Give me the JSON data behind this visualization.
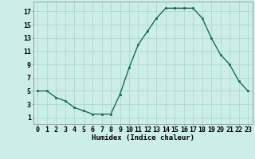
{
  "x": [
    0,
    1,
    2,
    3,
    4,
    5,
    6,
    7,
    8,
    9,
    10,
    11,
    12,
    13,
    14,
    15,
    16,
    17,
    18,
    19,
    20,
    21,
    22,
    23
  ],
  "y": [
    5,
    5,
    4,
    3.5,
    2.5,
    2,
    1.5,
    1.5,
    1.5,
    4.5,
    8.5,
    12,
    14,
    16,
    17.5,
    17.5,
    17.5,
    17.5,
    16,
    13,
    10.5,
    9,
    6.5,
    5
  ],
  "line_color": "#1a6b5a",
  "marker_color": "#1a6b5a",
  "bg_color": "#cceee8",
  "grid_color": "#b0d8d0",
  "xlabel": "Humidex (Indice chaleur)",
  "xlim": [
    -0.5,
    23.5
  ],
  "ylim": [
    0,
    18.5
  ],
  "yticks": [
    1,
    3,
    5,
    7,
    9,
    11,
    13,
    15,
    17
  ],
  "xlabel_fontsize": 6.5,
  "tick_fontsize": 6,
  "linewidth": 1.0,
  "markersize": 2.0
}
